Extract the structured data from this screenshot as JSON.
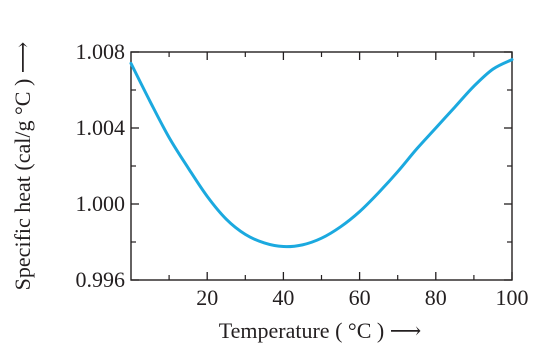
{
  "chart_data": {
    "type": "line",
    "title": "",
    "xlabel": "Temperature ( °C ) ⟶",
    "ylabel": "Specific heat (cal/g °C ) ⟶",
    "xlim": [
      0,
      100
    ],
    "ylim": [
      0.996,
      1.008
    ],
    "x_ticks": [
      20,
      40,
      60,
      80,
      100
    ],
    "x_tick_labels": [
      "20",
      "40",
      "60",
      "80",
      "100"
    ],
    "y_ticks": [
      0.996,
      1.0,
      1.004,
      1.008
    ],
    "y_tick_labels": [
      "0.996",
      "1.000",
      "1.004",
      "1.008"
    ],
    "grid": false,
    "series": [
      {
        "color": "#1ba9df",
        "x": [
          0,
          5,
          10,
          15,
          20,
          25,
          30,
          35,
          40,
          45,
          50,
          55,
          60,
          65,
          70,
          75,
          80,
          85,
          90,
          95,
          100
        ],
        "y": [
          1.0074,
          1.0054,
          1.0035,
          1.0019,
          1.0004,
          0.9992,
          0.9984,
          0.99795,
          0.99776,
          0.99785,
          0.9982,
          0.9988,
          0.9996,
          1.0006,
          1.0017,
          1.0029,
          1.004,
          1.0051,
          1.0062,
          1.0071,
          1.0076
        ]
      }
    ]
  }
}
